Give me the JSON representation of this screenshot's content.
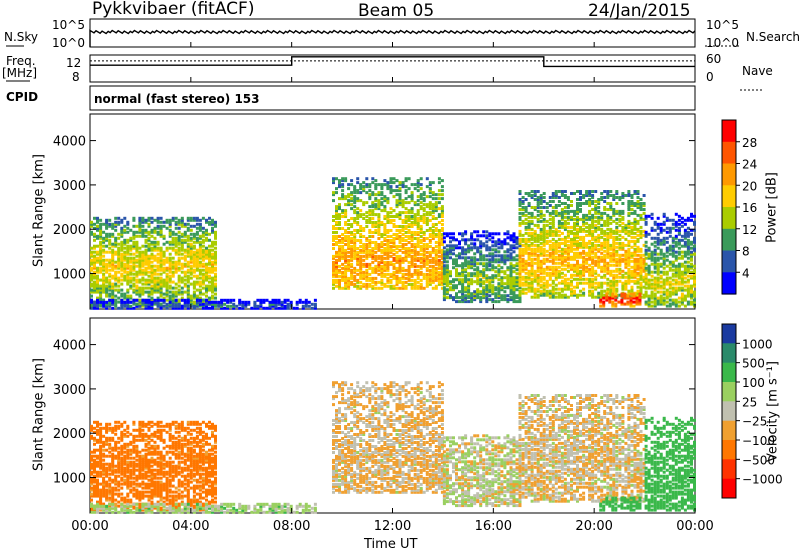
{
  "header": {
    "title": "Pykkvibaer (fitACF)",
    "beam": "Beam 05",
    "date": "24/Jan/2015"
  },
  "nsky_panel": {
    "left_label": "N.Sky",
    "right_label": "N.Search",
    "left_ticks": [
      "10^5",
      "10^0"
    ],
    "right_ticks": [
      "10^5",
      "10^0"
    ]
  },
  "freq_panel": {
    "left_label_1": "Freq.",
    "left_label_2": "[MHz]",
    "right_label": "Nave",
    "left_ticks": [
      "12",
      "8"
    ],
    "right_ticks": [
      "60",
      "0"
    ]
  },
  "cpid": {
    "label": "CPID",
    "value": "normal (fast stereo) 153"
  },
  "power_panel": {
    "ylabel": "Slant Range [km]",
    "cbar_label": "Power [dB]",
    "cbar_ticks": [
      "28",
      "24",
      "20",
      "16",
      "12",
      "8",
      "4"
    ],
    "cbar_colors": [
      "#ff0000",
      "#ff5500",
      "#ff9900",
      "#ffcc00",
      "#aacc00",
      "#3a9a5a",
      "#2a55aa",
      "#0000ff"
    ]
  },
  "velocity_panel": {
    "ylabel": "Slant Range [km]",
    "cbar_label": "Velocity [m s⁻¹]",
    "cbar_ticks": [
      "1000",
      "500",
      "100",
      "25",
      "−25",
      "−100",
      "−500",
      "−1000"
    ],
    "cbar_colors": [
      "#1a3aa0",
      "#2a8a6a",
      "#3ab84a",
      "#9ad060",
      "#c0c0b0",
      "#f0a030",
      "#ff7700",
      "#ff3300",
      "#ff0000"
    ]
  },
  "xaxis": {
    "label": "Time UT",
    "ticks": [
      "00:00",
      "04:00",
      "08:00",
      "12:00",
      "16:00",
      "20:00",
      "00:00"
    ]
  },
  "chart_data": {
    "type": "heatmap",
    "x_range_hours": [
      0,
      24
    ],
    "y_ticks_km": [
      "1000",
      "2000",
      "3000",
      "4000"
    ],
    "ylim_km": [
      200,
      4600
    ],
    "frequency_mhz_segments": [
      {
        "start": "00:00",
        "end": "08:00",
        "freq": 10.8
      },
      {
        "start": "08:00",
        "end": "18:00",
        "freq": 12.2
      },
      {
        "start": "18:00",
        "end": "24:00",
        "freq": 10.6
      }
    ],
    "nave_level": 47,
    "scatter_regions": [
      {
        "start_h": 0.0,
        "end_h": 5.0,
        "range_min_km": 300,
        "range_max_km": 2300,
        "peak_range_km": 1200,
        "power_db": 18,
        "velocity_ms": -150
      },
      {
        "start_h": 0.0,
        "end_h": 9.0,
        "range_min_km": 250,
        "range_max_km": 450,
        "peak_range_km": 320,
        "power_db": 8,
        "velocity_ms": 50
      },
      {
        "start_h": 9.6,
        "end_h": 14.0,
        "range_min_km": 700,
        "range_max_km": 3200,
        "peak_range_km": 1300,
        "power_db": 22,
        "velocity_ms": -30
      },
      {
        "start_h": 14.0,
        "end_h": 17.0,
        "range_min_km": 400,
        "range_max_km": 2000,
        "peak_range_km": 900,
        "power_db": 14,
        "velocity_ms": 10
      },
      {
        "start_h": 17.0,
        "end_h": 22.0,
        "range_min_km": 500,
        "range_max_km": 2900,
        "peak_range_km": 1300,
        "power_db": 20,
        "velocity_ms": -20
      },
      {
        "start_h": 20.2,
        "end_h": 21.8,
        "range_min_km": 300,
        "range_max_km": 600,
        "peak_range_km": 450,
        "power_db": 30,
        "velocity_ms": 300
      },
      {
        "start_h": 22.0,
        "end_h": 24.0,
        "range_min_km": 300,
        "range_max_km": 2400,
        "peak_range_km": 800,
        "power_db": 16,
        "velocity_ms": 200
      }
    ]
  }
}
